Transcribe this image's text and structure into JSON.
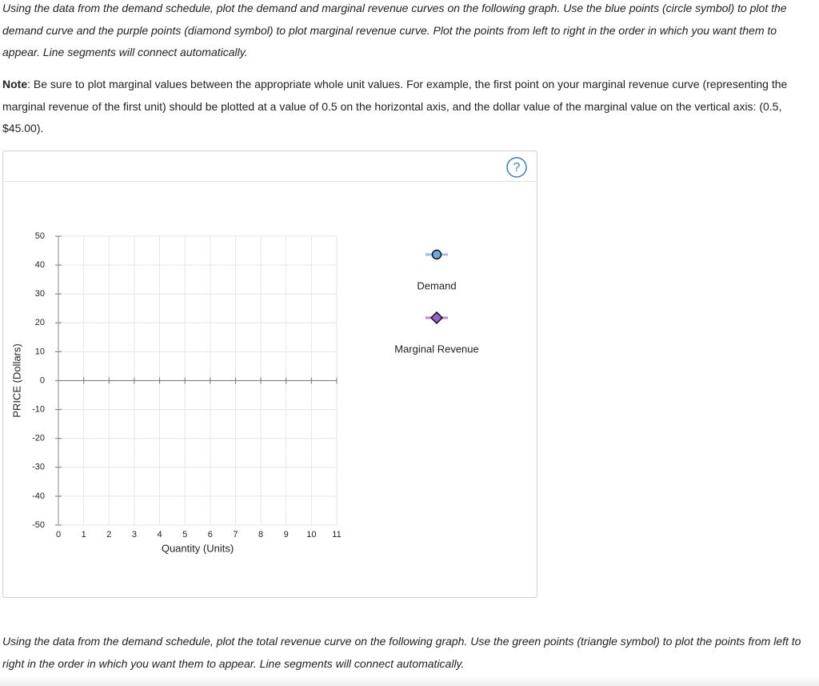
{
  "instructions": [
    "Using the data from the demand schedule, plot the demand and marginal revenue curves on the following graph. Use the blue points (circle symbol) to plot the demand curve and the purple points (diamond symbol) to plot marginal revenue curve. Plot the points from left to right in the order in which you want them to appear. Line segments will connect automatically."
  ],
  "note": {
    "label": "Note",
    "text": ": Be sure to plot marginal values between the appropriate whole unit values. For example, the first point on your marginal revenue curve (representing the marginal revenue of the first unit) should be plotted at a value of 0.5 on the horizontal axis, and the dollar value of the marginal value on the vertical axis: (0.5, $45.00)."
  },
  "help_icon": "?",
  "chart_data": {
    "type": "line",
    "xlabel": "Quantity (Units)",
    "ylabel": "PRICE (Dollars)",
    "xlim": [
      0,
      11
    ],
    "ylim": [
      -50,
      50
    ],
    "xticks": [
      0,
      1,
      2,
      3,
      4,
      5,
      6,
      7,
      8,
      9,
      10,
      11
    ],
    "yticks": [
      -50,
      -40,
      -30,
      -20,
      -10,
      0,
      10,
      20,
      30,
      40,
      50
    ],
    "grid": true,
    "series": [
      {
        "name": "Demand",
        "color": "#6fa8dc",
        "marker": "circle",
        "x": [],
        "values": []
      },
      {
        "name": "Marginal Revenue",
        "color": "#9b5fd0",
        "marker": "diamond",
        "x": [],
        "values": []
      }
    ]
  },
  "footer": [
    "Using the data from the demand schedule, plot the total revenue curve on the following graph. Use the green points (triangle symbol) to plot the points from left to right in the order in which you want them to appear. Line segments will connect automatically."
  ]
}
